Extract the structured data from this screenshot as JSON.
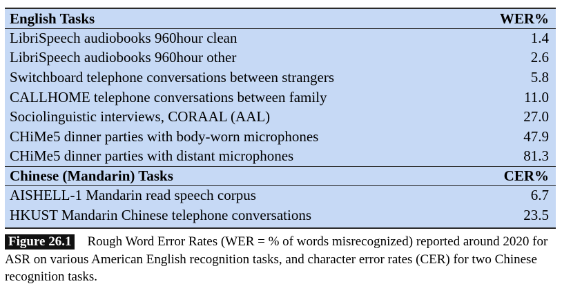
{
  "table": {
    "english": {
      "header": "English Tasks",
      "metric": "WER%",
      "rows": [
        {
          "task": "LibriSpeech audiobooks 960hour clean",
          "value": "1.4"
        },
        {
          "task": "LibriSpeech audiobooks 960hour other",
          "value": "2.6"
        },
        {
          "task": "Switchboard telephone conversations between strangers",
          "value": "5.8"
        },
        {
          "task": "CALLHOME telephone conversations between family",
          "value": "11.0"
        },
        {
          "task": "Sociolinguistic interviews, CORAAL (AAL)",
          "value": "27.0"
        },
        {
          "task": "CHiMe5 dinner parties with body-worn microphones",
          "value": "47.9"
        },
        {
          "task": "CHiMe5 dinner parties with distant microphones",
          "value": "81.3"
        }
      ]
    },
    "chinese": {
      "header": "Chinese (Mandarin) Tasks",
      "metric": "CER%",
      "rows": [
        {
          "task": "AISHELL-1 Mandarin read speech corpus",
          "value": "6.7"
        },
        {
          "task": "HKUST Mandarin Chinese telephone conversations",
          "value": "23.5"
        }
      ]
    }
  },
  "caption": {
    "label": "Figure 26.1",
    "text": "Rough Word Error Rates (WER = % of words misrecognized) reported around 2020 for ASR on various American English recognition tasks, and character error rates (CER) for two Chinese recognition tasks."
  },
  "colors": {
    "table_background": "#c6d9f5",
    "rule": "#2a2a2a",
    "label_background": "#111111"
  }
}
